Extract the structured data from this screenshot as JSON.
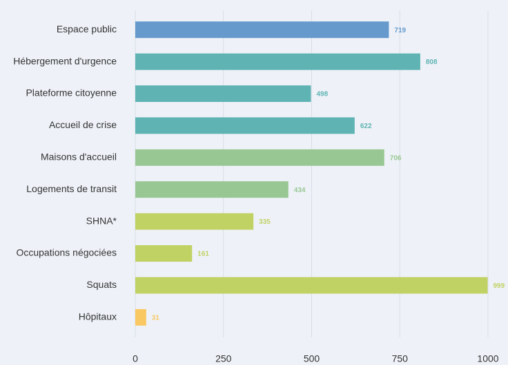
{
  "chart_data": {
    "type": "barh",
    "categories": [
      "Espace public",
      "Hébergement d'urgence",
      "Plateforme citoyenne",
      "Accueil de crise",
      "Maisons d'accueil",
      "Logements de transit",
      "SHNA*",
      "Occupations négociées",
      "Squats",
      "Hôpitaux"
    ],
    "values": [
      719,
      808,
      498,
      622,
      706,
      434,
      335,
      161,
      999,
      31
    ],
    "colors": [
      "#6699cc",
      "#5fb3b3",
      "#5fb3b3",
      "#5fb3b3",
      "#99c794",
      "#99c794",
      "#c0d264",
      "#c0d264",
      "#c0d264",
      "#fac863"
    ],
    "xlim": [
      0,
      1000
    ],
    "xticks": [
      0,
      250,
      500,
      750,
      1000
    ],
    "grid": true
  }
}
